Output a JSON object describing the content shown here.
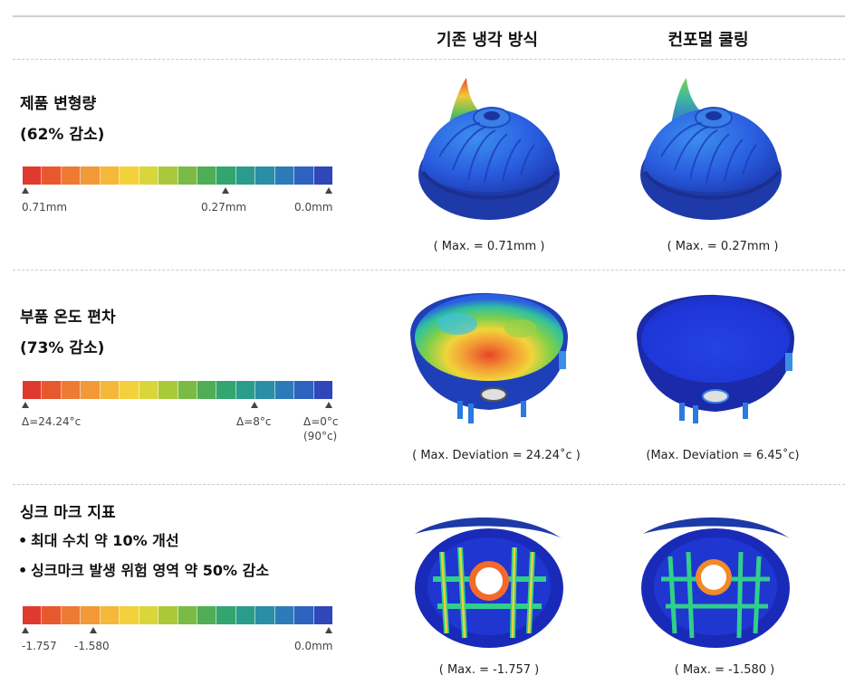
{
  "header": {
    "col1": "기존 냉각 방식",
    "col2": "컨포멀 쿨링"
  },
  "rows": [
    {
      "title1": "제품 변형량",
      "title2": "(62% 감소)",
      "scale_labels": [
        "0.71mm",
        "0.27mm",
        "0.0mm"
      ],
      "cap1": "( Max. = 0.71mm )",
      "cap2": "( Max. = 0.27mm )",
      "icon1": "deformation-simulation-conventional",
      "icon2": "deformation-simulation-conformal"
    },
    {
      "title1": "부품 온도 편차",
      "title2": "(73% 감소)",
      "scale_labels": [
        "Δ=24.24°c",
        "Δ=8°c",
        "Δ=0°c",
        "(90°c)"
      ],
      "cap1": "( Max. Deviation = 24.24˚c )",
      "cap2": "(Max. Deviation = 6.45˚c)",
      "icon1": "temperature-simulation-conventional",
      "icon2": "temperature-simulation-conformal"
    },
    {
      "title1": "싱크 마크 지표",
      "bullets": [
        "최대 수치 약 10% 개선",
        "싱크마크 발생 위험 영역 약 50% 감소"
      ],
      "scale_labels": [
        "-1.757",
        "-1.580",
        "0.0mm"
      ],
      "cap1": "( Max. = -1.757 )",
      "cap2": "( Max. = -1.580 )",
      "icon1": "sinkmark-simulation-conventional",
      "icon2": "sinkmark-simulation-conformal"
    }
  ],
  "colors": {
    "scale": [
      "#e03a2e",
      "#e8582f",
      "#ee7a33",
      "#f29a37",
      "#f5b83a",
      "#f3d13a",
      "#d8d63a",
      "#a9c93b",
      "#79bb44",
      "#4fae55",
      "#33a56f",
      "#2b9c8c",
      "#2a8ea6",
      "#2c7bb8",
      "#2d62bf",
      "#2f47b8"
    ]
  }
}
